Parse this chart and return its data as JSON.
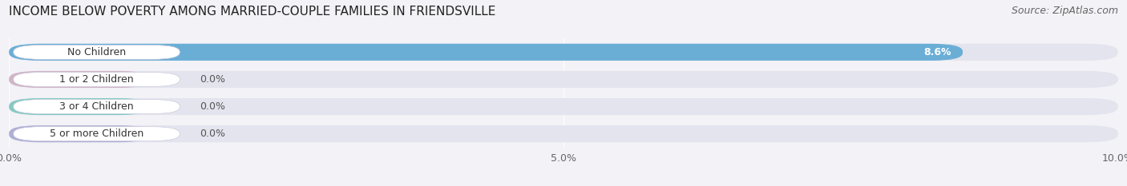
{
  "title": "INCOME BELOW POVERTY AMONG MARRIED-COUPLE FAMILIES IN FRIENDSVILLE",
  "source": "Source: ZipAtlas.com",
  "categories": [
    "No Children",
    "1 or 2 Children",
    "3 or 4 Children",
    "5 or more Children"
  ],
  "values": [
    8.6,
    0.0,
    0.0,
    0.0
  ],
  "bar_colors": [
    "#6aaed6",
    "#c9a0b8",
    "#5bbfb0",
    "#9898cc"
  ],
  "label_accent_colors": [
    "#6aaed6",
    "#c9a0b8",
    "#5bbfb0",
    "#9898cc"
  ],
  "xlim": [
    0,
    10.0
  ],
  "xticks": [
    0.0,
    5.0,
    10.0
  ],
  "xticklabels": [
    "0.0%",
    "5.0%",
    "10.0%"
  ],
  "background_color": "#f2f2f7",
  "bar_background_color": "#e4e4ee",
  "bar_row_background": "#ebebf3",
  "title_fontsize": 11,
  "source_fontsize": 9,
  "label_fontsize": 9,
  "value_fontsize": 9
}
